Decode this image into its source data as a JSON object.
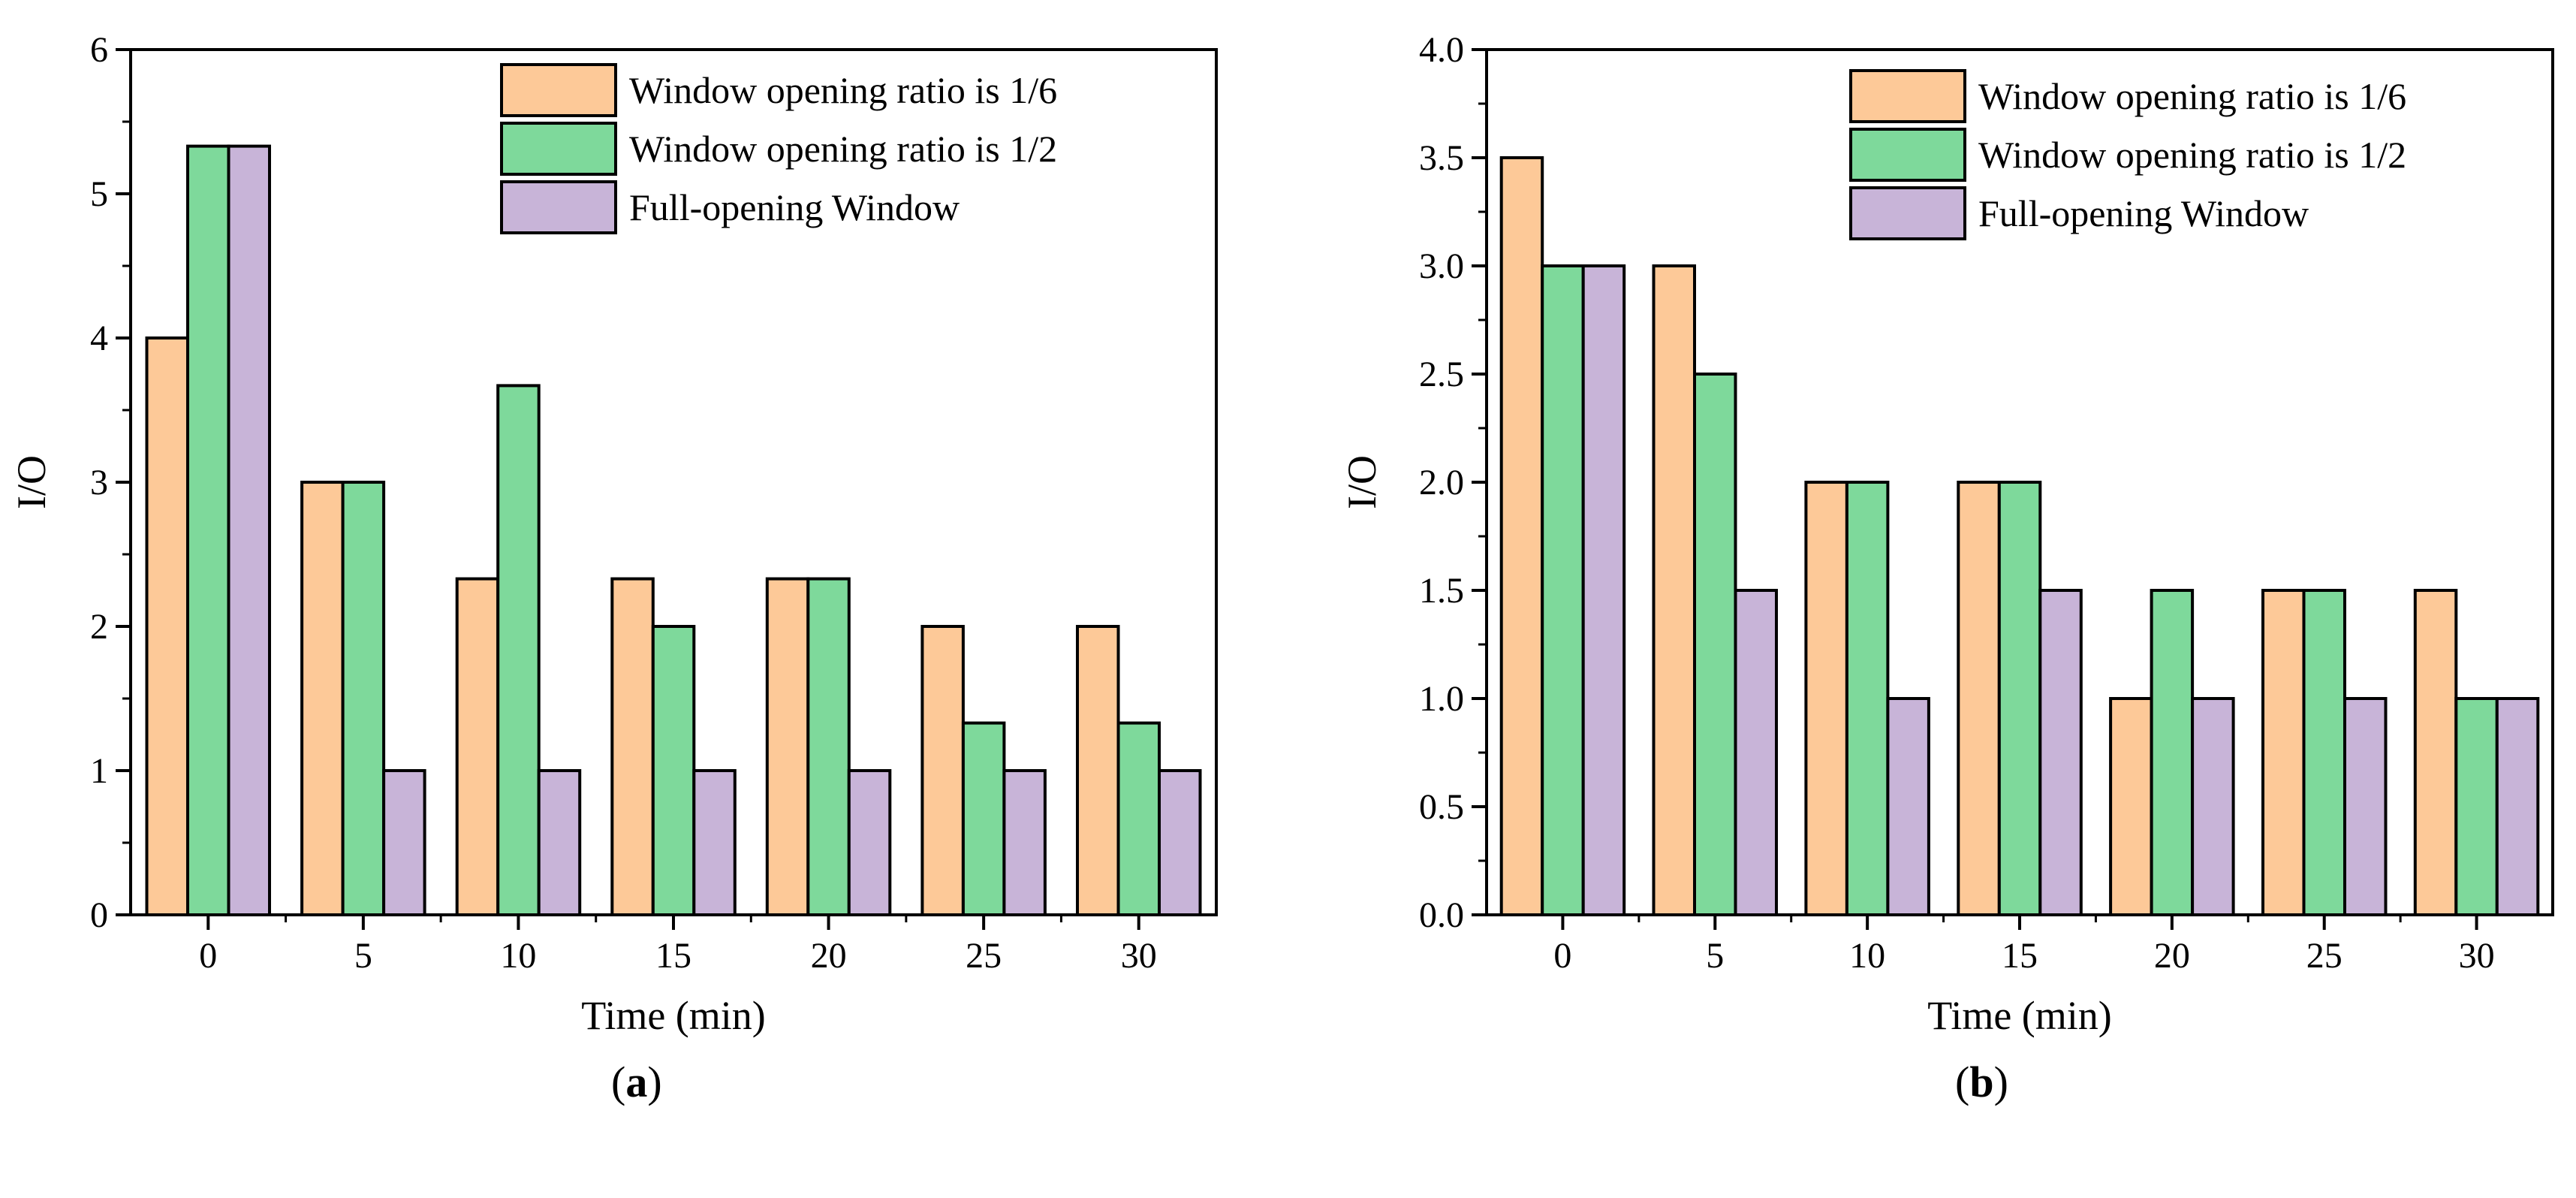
{
  "legend": {
    "series_1": "Window opening ratio is 1/6",
    "series_2": "Window opening ratio is 1/2",
    "series_3": "Full-opening Window"
  },
  "colors": {
    "series_1": "#FDC998",
    "series_2": "#7ED99B",
    "series_3": "#C8B4D8"
  },
  "chart_data": [
    {
      "type": "bar",
      "panel": "a",
      "caption_open": "(",
      "caption_letter": "a",
      "caption_close": ")",
      "xlabel": "Time (min)",
      "ylabel": "I/O",
      "ylim": [
        0,
        6
      ],
      "yticks": [
        0,
        1,
        2,
        3,
        4,
        5,
        6
      ],
      "ytick_labels": [
        "0",
        "1",
        "2",
        "3",
        "4",
        "5",
        "6"
      ],
      "categories": [
        "0",
        "5",
        "10",
        "15",
        "20",
        "25",
        "30"
      ],
      "legend_position": "top-right",
      "series": [
        {
          "name": "Window opening ratio is 1/6",
          "values": [
            4,
            3,
            2.33,
            2.33,
            2.33,
            2,
            2
          ]
        },
        {
          "name": "Window opening ratio is 1/2",
          "values": [
            5.33,
            3,
            3.67,
            2,
            2.33,
            1.33,
            1.33
          ]
        },
        {
          "name": "Full-opening Window",
          "values": [
            5.33,
            1,
            1,
            1,
            1,
            1,
            1
          ]
        }
      ]
    },
    {
      "type": "bar",
      "panel": "b",
      "caption_open": "(",
      "caption_letter": "b",
      "caption_close": ")",
      "xlabel": "Time (min)",
      "ylabel": "I/O",
      "ylim": [
        0,
        4
      ],
      "yticks": [
        0,
        0.5,
        1,
        1.5,
        2,
        2.5,
        3,
        3.5,
        4
      ],
      "ytick_labels": [
        "0.0",
        "0.5",
        "1.0",
        "1.5",
        "2.0",
        "2.5",
        "3.0",
        "3.5",
        "4.0"
      ],
      "categories": [
        "0",
        "5",
        "10",
        "15",
        "20",
        "25",
        "30"
      ],
      "legend_position": "top-right",
      "series": [
        {
          "name": "Window opening ratio is 1/6",
          "values": [
            3.5,
            3,
            2,
            2,
            1,
            1.5,
            1.5
          ]
        },
        {
          "name": "Window opening ratio is 1/2",
          "values": [
            3,
            2.5,
            2,
            2,
            1.5,
            1.5,
            1
          ]
        },
        {
          "name": "Full-opening Window",
          "values": [
            3,
            1.5,
            1,
            1.5,
            1,
            1,
            1
          ]
        }
      ]
    }
  ]
}
